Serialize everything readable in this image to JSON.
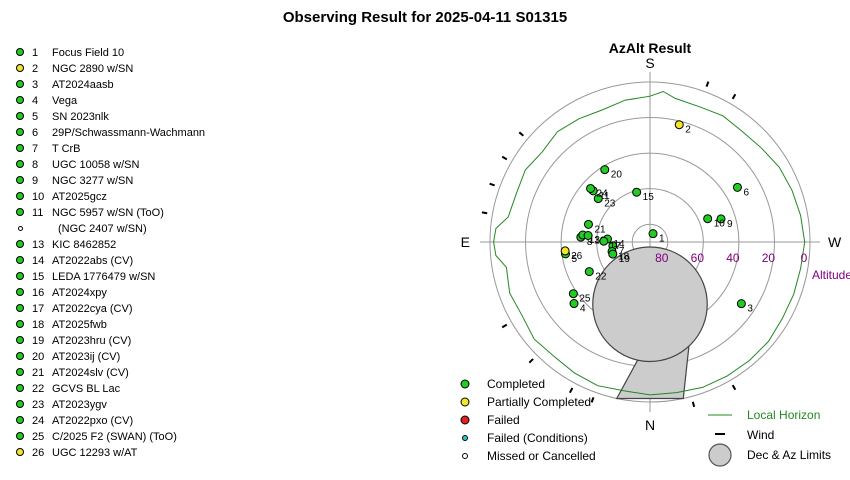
{
  "title": "Observing Result for 2025-04-11  S01315",
  "targets": [
    {
      "num": "1",
      "name": "Focus Field 10",
      "status": "completed"
    },
    {
      "num": "2",
      "name": "NGC 2890 w/SN",
      "status": "partial"
    },
    {
      "num": "3",
      "name": "AT2024aasb",
      "status": "completed"
    },
    {
      "num": "4",
      "name": "Vega",
      "status": "completed"
    },
    {
      "num": "5",
      "name": "SN 2023nlk",
      "status": "completed"
    },
    {
      "num": "6",
      "name": "29P/Schwassmann-Wachmann",
      "status": "completed"
    },
    {
      "num": "7",
      "name": "T CrB",
      "status": "completed"
    },
    {
      "num": "8",
      "name": "UGC 10058 w/SN",
      "status": "completed"
    },
    {
      "num": "9",
      "name": "NGC 3277 w/SN",
      "status": "completed"
    },
    {
      "num": "10",
      "name": "AT2025gcz",
      "status": "completed"
    },
    {
      "num": "11",
      "name": "NGC 5957 w/SN (ToO)",
      "status": "completed"
    },
    {
      "num": "",
      "name": "(NGC 2407 w/SN)",
      "status": "missed"
    },
    {
      "num": "13",
      "name": "KIC 8462852",
      "status": "completed"
    },
    {
      "num": "14",
      "name": "AT2022abs (CV)",
      "status": "completed"
    },
    {
      "num": "15",
      "name": "LEDA 1776479 w/SN",
      "status": "completed"
    },
    {
      "num": "16",
      "name": "AT2024xpy",
      "status": "completed"
    },
    {
      "num": "17",
      "name": "AT2022cya (CV)",
      "status": "completed"
    },
    {
      "num": "18",
      "name": "AT2025fwb",
      "status": "completed"
    },
    {
      "num": "19",
      "name": "AT2023hru (CV)",
      "status": "completed"
    },
    {
      "num": "20",
      "name": "AT2023ij (CV)",
      "status": "completed"
    },
    {
      "num": "21",
      "name": "AT2024slv (CV)",
      "status": "completed"
    },
    {
      "num": "22",
      "name": "GCVS BL Lac",
      "status": "completed"
    },
    {
      "num": "23",
      "name": "AT2023ygv",
      "status": "completed"
    },
    {
      "num": "24",
      "name": "AT2022pxo (CV)",
      "status": "completed"
    },
    {
      "num": "25",
      "name": "C/2025 F2 (SWAN) (ToO)",
      "status": "completed"
    },
    {
      "num": "26",
      "name": "UGC 12293 w/AT",
      "status": "partial"
    }
  ],
  "colors": {
    "completed": "#22cc22",
    "partial": "#f5e52a",
    "failed": "#dd2222",
    "failed_conditions": "#22cccc",
    "missed": "#ffffff",
    "horizon": "#228822",
    "altitude": "#800080",
    "limits": "#cccccc"
  },
  "chart_data": {
    "type": "scatter",
    "projection": "polar-azalt",
    "title": "AzAlt Result",
    "compass": {
      "S": "S",
      "E": "E",
      "W": "W",
      "N": "N"
    },
    "altitude_label": "Altitude",
    "altitude_rings": [
      80,
      60,
      40,
      20,
      0
    ],
    "altitude_tick_labels": [
      "80",
      "60",
      "40",
      "20",
      "0"
    ],
    "points": [
      {
        "label": "1",
        "alt": 85,
        "az": 200,
        "status": "completed"
      },
      {
        "label": "2",
        "alt": 22,
        "az": 194,
        "status": "partial"
      },
      {
        "label": "3",
        "alt": 28,
        "az": 304,
        "status": "completed"
      },
      {
        "label": "4",
        "alt": 35,
        "az": 51,
        "status": "completed"
      },
      {
        "label": "5",
        "alt": 42,
        "az": 82,
        "status": "completed"
      },
      {
        "label": "6",
        "alt": 32,
        "az": 238,
        "status": "completed"
      },
      {
        "label": "7",
        "alt": 69,
        "az": 84,
        "status": "completed"
      },
      {
        "label": "8",
        "alt": 51,
        "az": 94,
        "status": "completed"
      },
      {
        "label": "9",
        "alt": 48,
        "az": 252,
        "status": "completed"
      },
      {
        "label": "10",
        "alt": 55,
        "az": 248,
        "status": "completed"
      },
      {
        "label": "11",
        "alt": 47,
        "az": 132,
        "status": "completed"
      },
      {
        "label": "13",
        "alt": 52,
        "az": 96,
        "status": "completed"
      },
      {
        "label": "14",
        "alt": 66,
        "az": 94,
        "status": "completed"
      },
      {
        "label": "15",
        "alt": 61,
        "az": 165,
        "status": "completed"
      },
      {
        "label": "16",
        "alt": 55,
        "az": 96,
        "status": "completed"
      },
      {
        "label": "17",
        "alt": 64,
        "az": 91,
        "status": "completed"
      },
      {
        "label": "18",
        "alt": 68,
        "az": 76,
        "status": "completed"
      },
      {
        "label": "19",
        "alt": 68,
        "az": 72,
        "status": "completed"
      },
      {
        "label": "20",
        "alt": 42,
        "az": 148,
        "status": "completed"
      },
      {
        "label": "21",
        "alt": 54,
        "az": 106,
        "status": "completed"
      },
      {
        "label": "22",
        "alt": 52,
        "az": 64,
        "status": "completed"
      },
      {
        "label": "23",
        "alt": 52,
        "az": 130,
        "status": "completed"
      },
      {
        "label": "24",
        "alt": 45,
        "az": 132,
        "status": "completed"
      },
      {
        "label": "25",
        "alt": 38,
        "az": 56,
        "status": "completed"
      },
      {
        "label": "26",
        "alt": 42,
        "az": 84,
        "status": "partial"
      }
    ],
    "local_horizon_alt": [
      {
        "az": 0,
        "alt": 4
      },
      {
        "az": 10,
        "alt": 5
      },
      {
        "az": 20,
        "alt": 4
      },
      {
        "az": 30,
        "alt": 5
      },
      {
        "az": 40,
        "alt": 6
      },
      {
        "az": 50,
        "alt": 5
      },
      {
        "az": 60,
        "alt": 7
      },
      {
        "az": 70,
        "alt": 6
      },
      {
        "az": 80,
        "alt": 8
      },
      {
        "az": 85,
        "alt": 3
      },
      {
        "az": 90,
        "alt": 2
      },
      {
        "az": 95,
        "alt": 3
      },
      {
        "az": 100,
        "alt": 9
      },
      {
        "az": 110,
        "alt": 10
      },
      {
        "az": 120,
        "alt": 9
      },
      {
        "az": 130,
        "alt": 11
      },
      {
        "az": 140,
        "alt": 9
      },
      {
        "az": 150,
        "alt": 10
      },
      {
        "az": 160,
        "alt": 11
      },
      {
        "az": 170,
        "alt": 9
      },
      {
        "az": 180,
        "alt": 8
      },
      {
        "az": 185,
        "alt": 5
      },
      {
        "az": 190,
        "alt": 8
      },
      {
        "az": 200,
        "alt": 9
      },
      {
        "az": 210,
        "alt": 8
      },
      {
        "az": 220,
        "alt": 9
      },
      {
        "az": 230,
        "alt": 8
      },
      {
        "az": 240,
        "alt": 6
      },
      {
        "az": 250,
        "alt": 5
      },
      {
        "az": 260,
        "alt": 4
      },
      {
        "az": 270,
        "alt": 3
      },
      {
        "az": 280,
        "alt": 4
      },
      {
        "az": 290,
        "alt": 4
      },
      {
        "az": 300,
        "alt": 4
      },
      {
        "az": 310,
        "alt": 3
      },
      {
        "az": 320,
        "alt": 3
      },
      {
        "az": 330,
        "alt": 3
      },
      {
        "az": 340,
        "alt": 3
      },
      {
        "az": 350,
        "alt": 4
      }
    ],
    "limits": {
      "zenith_exclusion_center": {
        "alt": 55,
        "az": 0
      },
      "zenith_exclusion_radius_deg": 14,
      "az_wedge": [
        -12,
        12
      ]
    },
    "wind_directions_az": [
      20,
      28,
      45,
      60,
      100,
      110,
      120,
      130,
      200,
      210,
      330,
      345
    ],
    "legend": [
      {
        "label": "Completed",
        "key": "completed"
      },
      {
        "label": "Partially Completed",
        "key": "partial"
      },
      {
        "label": "Failed",
        "key": "failed"
      },
      {
        "label": "Failed (Conditions)",
        "key": "failed_conditions"
      },
      {
        "label": "Missed or Cancelled",
        "key": "missed"
      },
      {
        "label": "Local Horizon",
        "key": "horizon"
      },
      {
        "label": "Wind",
        "key": "wind"
      },
      {
        "label": "Dec & Az Limits",
        "key": "limits"
      }
    ]
  }
}
